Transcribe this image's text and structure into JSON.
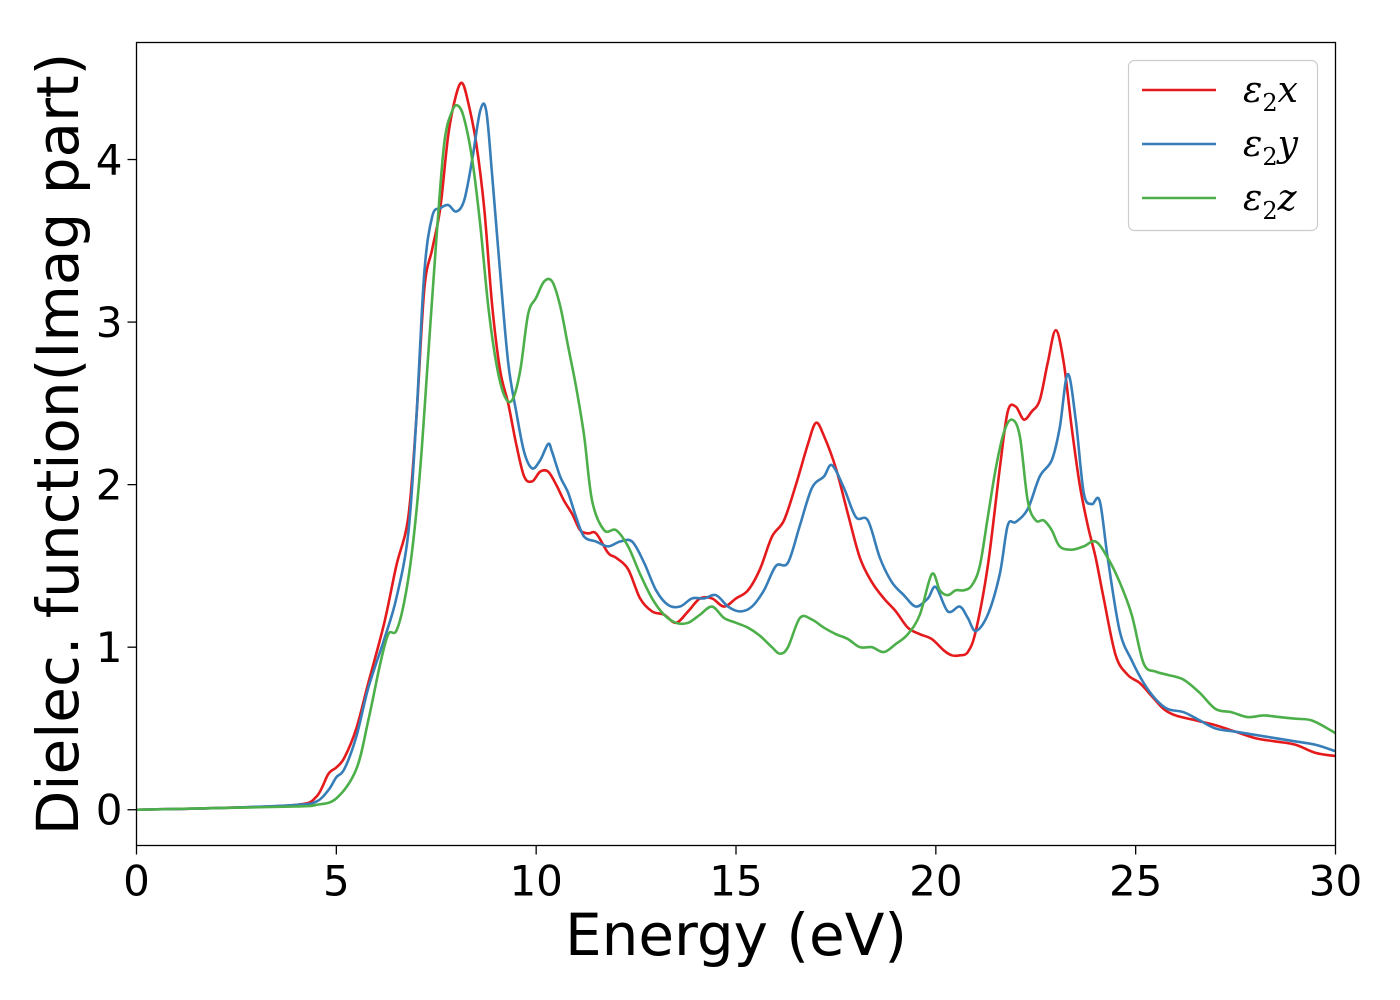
{
  "chart_data": {
    "type": "line",
    "title": "",
    "xlabel": "Energy (eV)",
    "ylabel": "Dielec. function(Imag part)",
    "xlim": [
      0,
      30
    ],
    "ylim": [
      -0.22,
      4.72
    ],
    "xticks": [
      "0",
      "5",
      "10",
      "15",
      "20",
      "25",
      "30"
    ],
    "yticks": [
      "0",
      "1",
      "2",
      "3",
      "4"
    ],
    "grid": false,
    "legend_position": "top-right",
    "series": [
      {
        "name": "ε2x",
        "legend_base": "ε",
        "legend_sub": "2",
        "legend_var": "x",
        "color": "#e41a1c",
        "x": [
          0,
          2,
          4,
          4.5,
          4.8,
          5.0,
          5.2,
          5.5,
          5.8,
          6.2,
          6.5,
          6.8,
          7.0,
          7.2,
          7.4,
          7.6,
          7.8,
          8.0,
          8.15,
          8.3,
          8.5,
          8.7,
          8.9,
          9.1,
          9.3,
          9.5,
          9.7,
          9.9,
          10.1,
          10.3,
          10.5,
          10.7,
          10.9,
          11.1,
          11.3,
          11.5,
          11.8,
          12.0,
          12.3,
          12.6,
          12.9,
          13.2,
          13.5,
          13.8,
          14.1,
          14.4,
          14.7,
          15.0,
          15.3,
          15.6,
          15.9,
          16.2,
          16.5,
          16.8,
          17.0,
          17.2,
          17.5,
          17.8,
          18.1,
          18.4,
          18.7,
          19.0,
          19.3,
          19.6,
          19.9,
          20.2,
          20.4,
          20.6,
          20.8,
          21.0,
          21.3,
          21.6,
          21.8,
          22.0,
          22.2,
          22.4,
          22.6,
          22.8,
          23.0,
          23.2,
          23.4,
          23.6,
          23.8,
          24.0,
          24.2,
          24.5,
          24.8,
          25.1,
          25.4,
          25.7,
          26.0,
          26.5,
          27.0,
          27.5,
          28.0,
          28.5,
          29.0,
          29.5,
          30.0
        ],
        "values": [
          0.0,
          0.01,
          0.03,
          0.08,
          0.22,
          0.26,
          0.32,
          0.5,
          0.78,
          1.15,
          1.5,
          1.8,
          2.4,
          3.2,
          3.45,
          3.7,
          4.15,
          4.4,
          4.47,
          4.35,
          4.1,
          3.7,
          3.1,
          2.7,
          2.5,
          2.25,
          2.05,
          2.02,
          2.08,
          2.08,
          2.0,
          1.9,
          1.82,
          1.72,
          1.7,
          1.7,
          1.58,
          1.55,
          1.48,
          1.3,
          1.22,
          1.2,
          1.15,
          1.22,
          1.3,
          1.3,
          1.25,
          1.3,
          1.35,
          1.48,
          1.68,
          1.78,
          2.0,
          2.25,
          2.38,
          2.3,
          2.1,
          1.82,
          1.55,
          1.4,
          1.3,
          1.22,
          1.12,
          1.08,
          1.05,
          0.98,
          0.95,
          0.95,
          0.97,
          1.1,
          1.5,
          2.1,
          2.45,
          2.48,
          2.4,
          2.45,
          2.52,
          2.75,
          2.95,
          2.75,
          2.35,
          2.0,
          1.75,
          1.55,
          1.3,
          0.95,
          0.83,
          0.78,
          0.7,
          0.62,
          0.58,
          0.55,
          0.52,
          0.48,
          0.44,
          0.42,
          0.4,
          0.35,
          0.33
        ]
      },
      {
        "name": "ε2y",
        "legend_base": "ε",
        "legend_sub": "2",
        "legend_var": "y",
        "color": "#377eb8",
        "x": [
          0,
          2,
          4,
          4.5,
          4.8,
          5.0,
          5.2,
          5.5,
          5.8,
          6.2,
          6.5,
          6.8,
          7.0,
          7.2,
          7.4,
          7.6,
          7.8,
          8.0,
          8.2,
          8.4,
          8.6,
          8.75,
          8.9,
          9.1,
          9.3,
          9.5,
          9.7,
          9.9,
          10.1,
          10.3,
          10.4,
          10.6,
          10.8,
          11.0,
          11.2,
          11.5,
          11.8,
          12.1,
          12.4,
          12.7,
          13.0,
          13.3,
          13.6,
          13.9,
          14.2,
          14.5,
          14.8,
          15.1,
          15.4,
          15.7,
          16.0,
          16.3,
          16.6,
          16.9,
          17.2,
          17.4,
          17.7,
          18.0,
          18.3,
          18.6,
          18.9,
          19.2,
          19.5,
          19.8,
          20.0,
          20.3,
          20.6,
          20.8,
          21.0,
          21.3,
          21.6,
          21.8,
          22.0,
          22.3,
          22.6,
          22.9,
          23.1,
          23.3,
          23.5,
          23.7,
          23.9,
          24.1,
          24.3,
          24.6,
          24.9,
          25.2,
          25.5,
          25.8,
          26.2,
          26.6,
          27.0,
          27.5,
          28.0,
          28.5,
          29.0,
          29.5,
          30.0
        ],
        "values": [
          0.0,
          0.01,
          0.03,
          0.05,
          0.12,
          0.2,
          0.25,
          0.45,
          0.75,
          1.05,
          1.3,
          1.7,
          2.4,
          3.3,
          3.65,
          3.7,
          3.72,
          3.68,
          3.75,
          4.0,
          4.3,
          4.3,
          3.9,
          3.3,
          2.75,
          2.45,
          2.2,
          2.1,
          2.15,
          2.25,
          2.2,
          2.05,
          1.95,
          1.8,
          1.68,
          1.65,
          1.62,
          1.65,
          1.65,
          1.52,
          1.35,
          1.26,
          1.25,
          1.3,
          1.3,
          1.32,
          1.25,
          1.22,
          1.25,
          1.35,
          1.5,
          1.52,
          1.75,
          1.98,
          2.05,
          2.12,
          1.98,
          1.8,
          1.78,
          1.55,
          1.4,
          1.32,
          1.25,
          1.3,
          1.37,
          1.22,
          1.25,
          1.18,
          1.1,
          1.2,
          1.45,
          1.75,
          1.77,
          1.85,
          2.05,
          2.15,
          2.35,
          2.68,
          2.4,
          1.95,
          1.88,
          1.9,
          1.55,
          1.1,
          0.92,
          0.78,
          0.68,
          0.62,
          0.6,
          0.55,
          0.5,
          0.48,
          0.46,
          0.44,
          0.42,
          0.4,
          0.36
        ]
      },
      {
        "name": "ε2z",
        "legend_base": "ε",
        "legend_sub": "2",
        "legend_var": "z",
        "color": "#4daf4a",
        "x": [
          0,
          2,
          4,
          4.5,
          5.0,
          5.5,
          5.8,
          6.1,
          6.3,
          6.5,
          6.7,
          6.9,
          7.1,
          7.3,
          7.5,
          7.7,
          7.9,
          8.05,
          8.2,
          8.4,
          8.6,
          8.8,
          9.0,
          9.2,
          9.4,
          9.6,
          9.8,
          10.0,
          10.2,
          10.4,
          10.6,
          10.8,
          11.0,
          11.2,
          11.4,
          11.7,
          12.0,
          12.3,
          12.6,
          12.9,
          13.2,
          13.5,
          13.8,
          14.1,
          14.4,
          14.7,
          15.0,
          15.3,
          15.6,
          15.9,
          16.1,
          16.3,
          16.6,
          16.9,
          17.2,
          17.5,
          17.8,
          18.1,
          18.4,
          18.7,
          19.0,
          19.3,
          19.6,
          19.9,
          20.1,
          20.3,
          20.5,
          20.7,
          20.9,
          21.1,
          21.3,
          21.5,
          21.7,
          21.9,
          22.1,
          22.3,
          22.5,
          22.7,
          22.9,
          23.1,
          23.4,
          23.7,
          24.0,
          24.3,
          24.6,
          24.9,
          25.2,
          25.5,
          25.8,
          26.2,
          26.6,
          27.0,
          27.4,
          27.8,
          28.2,
          28.6,
          29.0,
          29.4,
          29.8,
          30.0
        ],
        "values": [
          0.0,
          0.01,
          0.02,
          0.03,
          0.07,
          0.25,
          0.55,
          0.9,
          1.08,
          1.1,
          1.28,
          1.6,
          2.1,
          2.8,
          3.5,
          4.1,
          4.3,
          4.33,
          4.25,
          4.0,
          3.6,
          3.1,
          2.75,
          2.55,
          2.52,
          2.7,
          3.05,
          3.15,
          3.25,
          3.25,
          3.1,
          2.85,
          2.6,
          2.3,
          1.9,
          1.72,
          1.72,
          1.62,
          1.45,
          1.3,
          1.2,
          1.15,
          1.15,
          1.2,
          1.25,
          1.18,
          1.15,
          1.12,
          1.07,
          1.0,
          0.96,
          1.0,
          1.18,
          1.17,
          1.12,
          1.08,
          1.05,
          1.0,
          1.0,
          0.97,
          1.02,
          1.08,
          1.2,
          1.45,
          1.35,
          1.32,
          1.35,
          1.35,
          1.38,
          1.5,
          1.8,
          2.1,
          2.32,
          2.4,
          2.3,
          1.9,
          1.78,
          1.78,
          1.72,
          1.62,
          1.6,
          1.62,
          1.65,
          1.55,
          1.4,
          1.2,
          0.9,
          0.85,
          0.83,
          0.8,
          0.72,
          0.62,
          0.6,
          0.57,
          0.58,
          0.57,
          0.56,
          0.55,
          0.5,
          0.47
        ]
      }
    ]
  }
}
